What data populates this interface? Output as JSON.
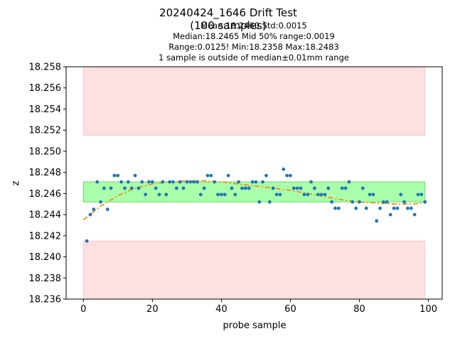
{
  "chart_data": {
    "type": "scatter",
    "title": "20240424_1646 Drift Test",
    "subtitle": "(100 samples)",
    "stats_lines": [
      "Mean:18.2460  Std:0.0015",
      "Median:18.2465  Mid 50% range:0.0019",
      "Range:0.0125!  Min:18.2358  Max:18.2483",
      "1 sample is outside of median±0.01mm range"
    ],
    "xlabel": "probe sample",
    "ylabel": "z",
    "xlim": [
      -5,
      104
    ],
    "ylim": [
      18.236,
      18.258
    ],
    "xticks": [
      0,
      20,
      40,
      60,
      80,
      100
    ],
    "yticks": [
      18.236,
      18.238,
      18.24,
      18.242,
      18.244,
      18.246,
      18.248,
      18.25,
      18.252,
      18.254,
      18.256,
      18.258
    ],
    "ytick_format_decimals": 3,
    "bands": [
      {
        "name": "out-of-range-upper",
        "x0": 0,
        "x1": 99,
        "y0": 18.2515,
        "y1": 18.258,
        "color": "#ffe0e0",
        "edge": "#ffc8c8"
      },
      {
        "name": "mid-50",
        "x0": 0,
        "x1": 99,
        "y0": 18.2452,
        "y1": 18.2471,
        "color": "#aaffaa",
        "edge": "#66dd66"
      },
      {
        "name": "out-of-range-lower",
        "x0": 0,
        "x1": 99,
        "y0": 18.236,
        "y1": 18.2415,
        "color": "#ffe0e0",
        "edge": "#ffc8c8"
      }
    ],
    "scatter": {
      "color": "#1f77b4",
      "x": [
        1,
        2,
        3,
        4,
        5,
        6,
        7,
        8,
        9,
        10,
        11,
        12,
        13,
        14,
        15,
        16,
        17,
        18,
        19,
        20,
        21,
        22,
        23,
        24,
        25,
        26,
        27,
        28,
        29,
        30,
        31,
        32,
        33,
        34,
        35,
        36,
        37,
        38,
        39,
        40,
        41,
        42,
        43,
        44,
        45,
        46,
        47,
        48,
        49,
        50,
        51,
        52,
        53,
        54,
        55,
        56,
        57,
        58,
        59,
        60,
        61,
        62,
        63,
        64,
        65,
        66,
        67,
        68,
        69,
        70,
        71,
        72,
        73,
        74,
        75,
        76,
        77,
        78,
        79,
        80,
        81,
        82,
        83,
        84,
        85,
        86,
        87,
        88,
        89,
        90,
        91,
        92,
        93,
        94,
        95,
        96,
        97,
        98,
        99
      ],
      "y": [
        18.2415,
        18.244,
        18.2445,
        18.2471,
        18.2452,
        18.2465,
        18.2445,
        18.2465,
        18.2477,
        18.2477,
        18.2471,
        18.2465,
        18.2471,
        18.2465,
        18.2477,
        18.2465,
        18.2471,
        18.2459,
        18.2471,
        18.2471,
        18.2465,
        18.2459,
        18.2471,
        18.2459,
        18.2471,
        18.2471,
        18.2465,
        18.2471,
        18.2465,
        18.2471,
        18.2471,
        18.2471,
        18.2471,
        18.2459,
        18.2465,
        18.2477,
        18.2477,
        18.2471,
        18.2459,
        18.2459,
        18.2459,
        18.2477,
        18.2465,
        18.2459,
        18.2471,
        18.2465,
        18.2465,
        18.2465,
        18.2471,
        18.2471,
        18.2452,
        18.2471,
        18.2477,
        18.2452,
        18.2465,
        18.2459,
        18.2459,
        18.2483,
        18.2477,
        18.2477,
        18.2465,
        18.2465,
        18.2465,
        18.2459,
        18.2459,
        18.2471,
        18.2465,
        18.2459,
        18.2459,
        18.2459,
        18.2465,
        18.2452,
        18.2446,
        18.2446,
        18.2465,
        18.2465,
        18.2471,
        18.2452,
        18.2446,
        18.2452,
        18.2465,
        18.2446,
        18.2459,
        18.2459,
        18.2434,
        18.2446,
        18.2452,
        18.2452,
        18.244,
        18.2446,
        18.2446,
        18.2459,
        18.2452,
        18.2446,
        18.2446,
        18.244,
        18.2459,
        18.2459,
        18.2452
      ]
    },
    "trend": {
      "style": "dash-dot",
      "color": "#ff7f0e",
      "x": [
        0,
        5,
        10,
        15,
        20,
        25,
        30,
        35,
        40,
        45,
        50,
        55,
        60,
        65,
        70,
        75,
        80,
        85,
        90,
        95,
        99
      ],
      "y": [
        18.2435,
        18.2448,
        18.2458,
        18.2465,
        18.2469,
        18.2471,
        18.2472,
        18.2472,
        18.2471,
        18.2469,
        18.2467,
        18.2465,
        18.2463,
        18.246,
        18.2457,
        18.2454,
        18.2452,
        18.2451,
        18.245,
        18.245,
        18.2451
      ]
    }
  }
}
